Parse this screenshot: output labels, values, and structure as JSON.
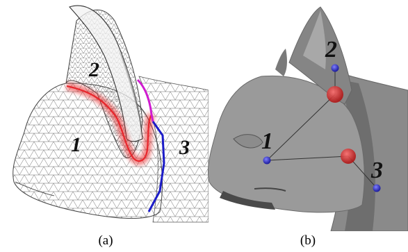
{
  "figure": {
    "panels": [
      {
        "id": "a",
        "caption": "(a)",
        "region_labels": [
          "1",
          "2",
          "3"
        ]
      },
      {
        "id": "b",
        "caption": "(b)",
        "node_labels": [
          "1",
          "2",
          "3"
        ]
      }
    ],
    "colors": {
      "mesh_line": "#555555",
      "red_boundary": "#e8262c",
      "magenta_boundary": "#d01cd0",
      "blue_boundary": "#1c1cc8",
      "shaded_body": "#8f8f8f",
      "node_blue": "#3a3ad8",
      "node_red": "#d43030"
    }
  }
}
